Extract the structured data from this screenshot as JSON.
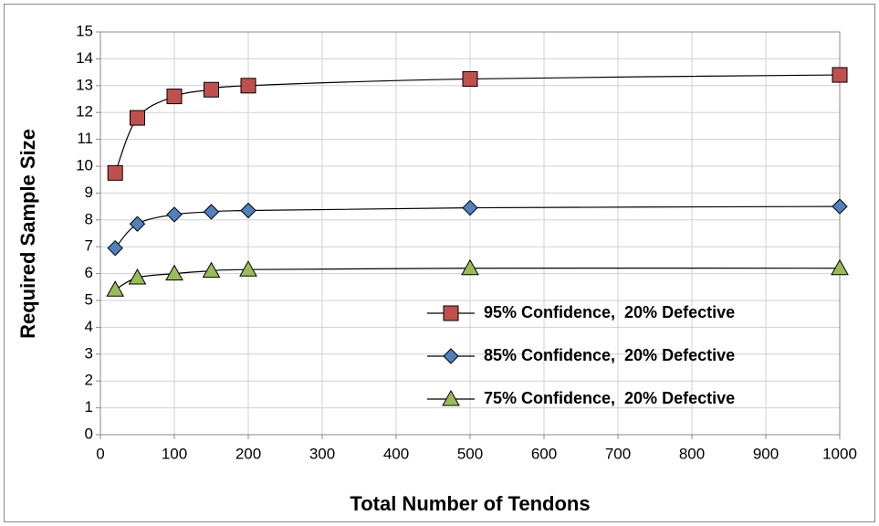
{
  "chart_data": {
    "type": "line",
    "x_label": "Total Number of Tendons",
    "y_label": "Required Sample Size",
    "x": [
      20,
      50,
      100,
      150,
      200,
      500,
      1000
    ],
    "series": [
      {
        "name": "95% Confidence,  20% Defective",
        "color": "#c0504d",
        "marker": "square",
        "values": [
          9.75,
          11.8,
          12.6,
          12.85,
          13.0,
          13.25,
          13.4
        ]
      },
      {
        "name": "85% Confidence,  20% Defective",
        "color": "#4f81bd",
        "marker": "diamond",
        "values": [
          6.95,
          7.85,
          8.2,
          8.3,
          8.35,
          8.45,
          8.5
        ]
      },
      {
        "name": "75% Confidence,  20% Defective",
        "color": "#9bbb59",
        "marker": "triangle",
        "values": [
          5.4,
          5.85,
          6.0,
          6.1,
          6.15,
          6.2,
          6.2
        ]
      }
    ],
    "xlim": [
      0,
      1000
    ],
    "xticks": [
      0,
      100,
      200,
      300,
      400,
      500,
      600,
      700,
      800,
      900,
      1000
    ],
    "ylim": [
      0,
      15
    ],
    "yticks": [
      0,
      1,
      2,
      3,
      4,
      5,
      6,
      7,
      8,
      9,
      10,
      11,
      12,
      13,
      14,
      15
    ],
    "grid": true,
    "smooth": true,
    "legend": "center right"
  }
}
